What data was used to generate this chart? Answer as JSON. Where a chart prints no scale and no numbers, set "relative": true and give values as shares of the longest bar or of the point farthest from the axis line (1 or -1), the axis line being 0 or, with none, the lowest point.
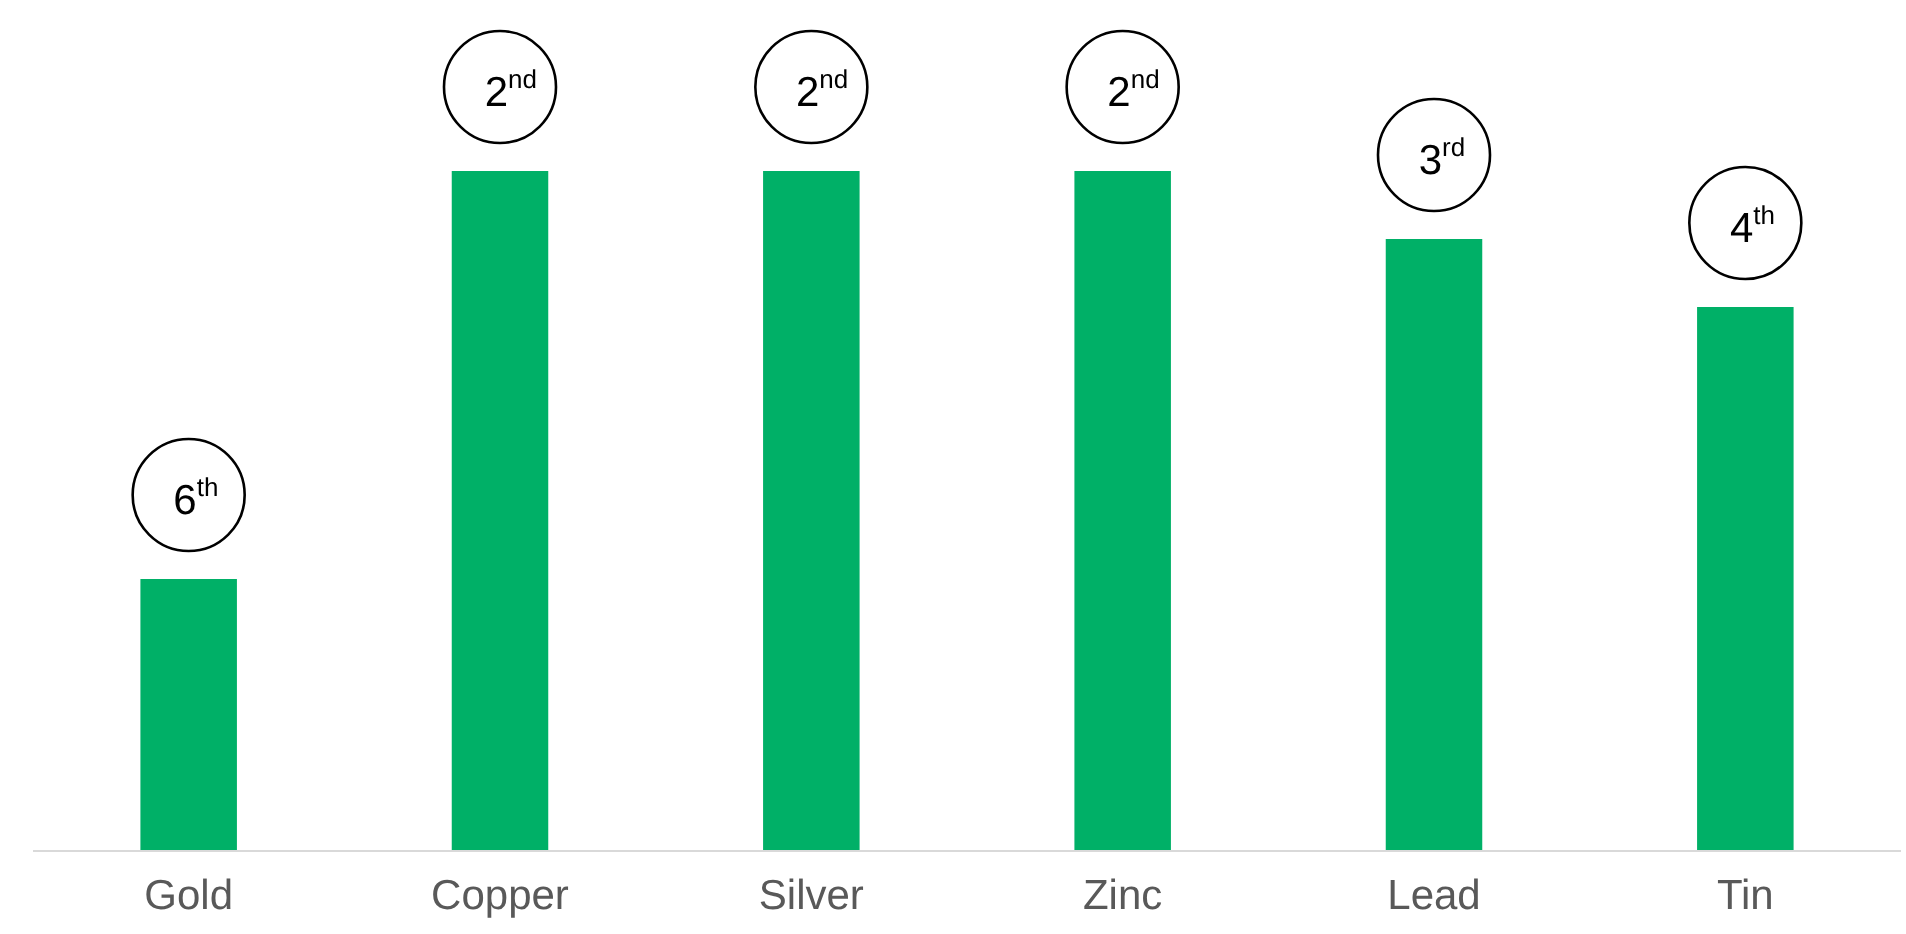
{
  "chart_data": {
    "type": "bar",
    "relative": true,
    "categories": [
      "Gold",
      "Copper",
      "Silver",
      "Zinc",
      "Lead",
      "Tin"
    ],
    "values": [
      0.4,
      1,
      1,
      1,
      0.9,
      0.8
    ],
    "color": "#00b067",
    "annotations": [
      {
        "text": "6$^{th}$",
        "x": "Gold",
        "y": 0.4
      },
      {
        "text": "2$^{nd}$",
        "x": "Copper",
        "y": 1
      },
      {
        "text": "2$^{nd}$",
        "x": "Silver",
        "y": 1
      },
      {
        "text": "2$^{nd}$",
        "x": "Zinc",
        "y": 1
      },
      {
        "text": "3$^{rd}$",
        "x": "Lead",
        "y": 0.9
      },
      {
        "text": "4$^{th}$",
        "x": "Tin",
        "y": 0.8
      }
    ],
    "grid": false
  }
}
